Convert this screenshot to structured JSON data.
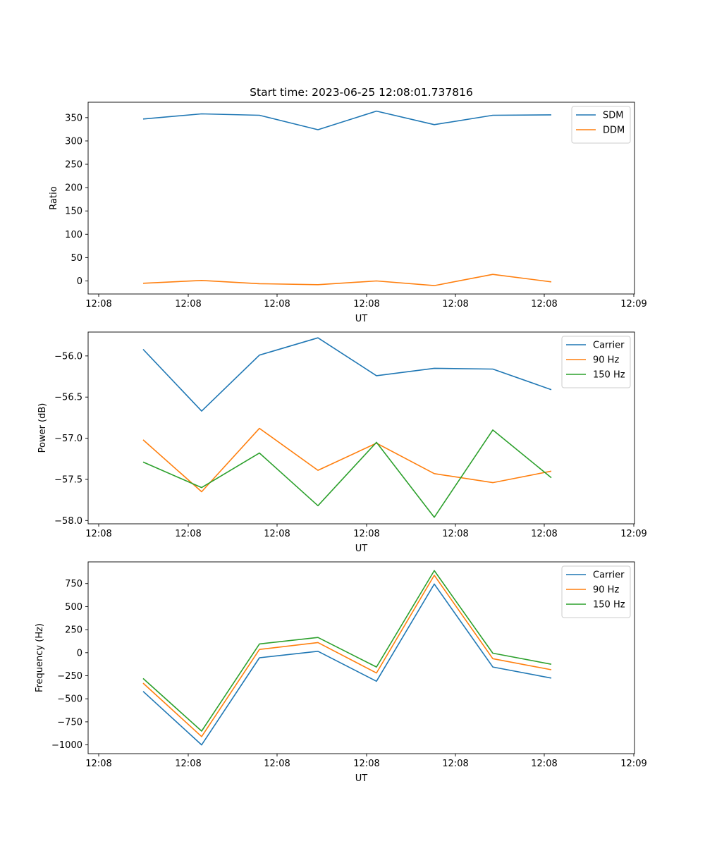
{
  "figure": {
    "title": "Start time: 2023-06-25 12:08:01.737816"
  },
  "chart_data": [
    {
      "type": "line",
      "xlabel": "UT",
      "ylabel": "Ratio",
      "x_tick_labels": [
        "12:08",
        "12:08",
        "12:08",
        "12:08",
        "12:08",
        "12:08",
        "12:09"
      ],
      "y_ticks": [
        0,
        50,
        100,
        150,
        200,
        250,
        300,
        350
      ],
      "ylim": [
        -28,
        383
      ],
      "legend_position": "upper right",
      "series": [
        {
          "name": "SDM",
          "color": "#1f77b4",
          "values": [
            347,
            358,
            355,
            324,
            364,
            335,
            355,
            356
          ]
        },
        {
          "name": "DDM",
          "color": "#ff7f0e",
          "values": [
            -5,
            1,
            -6,
            -8,
            0,
            -10,
            14,
            -2
          ]
        }
      ]
    },
    {
      "type": "line",
      "xlabel": "UT",
      "ylabel": "Power (dB)",
      "x_tick_labels": [
        "12:08",
        "12:08",
        "12:08",
        "12:08",
        "12:08",
        "12:08",
        "12:09"
      ],
      "y_ticks": [
        -58.0,
        -57.5,
        -57.0,
        -56.5,
        -56.0
      ],
      "y_tick_labels": [
        "−58.0",
        "−57.5",
        "−57.0",
        "−56.5",
        "−56.0"
      ],
      "ylim": [
        -58.04,
        -55.71
      ],
      "legend_position": "upper right",
      "series": [
        {
          "name": "Carrier",
          "color": "#1f77b4",
          "values": [
            -55.92,
            -56.67,
            -55.99,
            -55.78,
            -56.24,
            -56.15,
            -56.16,
            -56.41
          ]
        },
        {
          "name": "90 Hz",
          "color": "#ff7f0e",
          "values": [
            -57.02,
            -57.65,
            -56.88,
            -57.39,
            -57.06,
            -57.43,
            -57.54,
            -57.4
          ]
        },
        {
          "name": "150 Hz",
          "color": "#2ca02c",
          "values": [
            -57.29,
            -57.6,
            -57.18,
            -57.82,
            -57.05,
            -57.96,
            -56.9,
            -57.48
          ]
        }
      ]
    },
    {
      "type": "line",
      "xlabel": "UT",
      "ylabel": "Frequency (Hz)",
      "x_tick_labels": [
        "12:08",
        "12:08",
        "12:08",
        "12:08",
        "12:08",
        "12:08",
        "12:09"
      ],
      "y_ticks": [
        -1000,
        -750,
        -500,
        -250,
        0,
        250,
        500,
        750
      ],
      "y_tick_labels": [
        "−1000",
        "−750",
        "−500",
        "−250",
        "0",
        "250",
        "500",
        "750"
      ],
      "ylim": [
        -1095,
        985
      ],
      "legend_position": "upper right",
      "series": [
        {
          "name": "Carrier",
          "color": "#1f77b4",
          "values": [
            -420,
            -1000,
            -55,
            15,
            -310,
            745,
            -155,
            -275
          ]
        },
        {
          "name": "90 Hz",
          "color": "#ff7f0e",
          "values": [
            -330,
            -910,
            35,
            110,
            -220,
            840,
            -65,
            -185
          ]
        },
        {
          "name": "150 Hz",
          "color": "#2ca02c",
          "values": [
            -280,
            -850,
            95,
            165,
            -155,
            890,
            -5,
            -125
          ]
        }
      ]
    }
  ]
}
